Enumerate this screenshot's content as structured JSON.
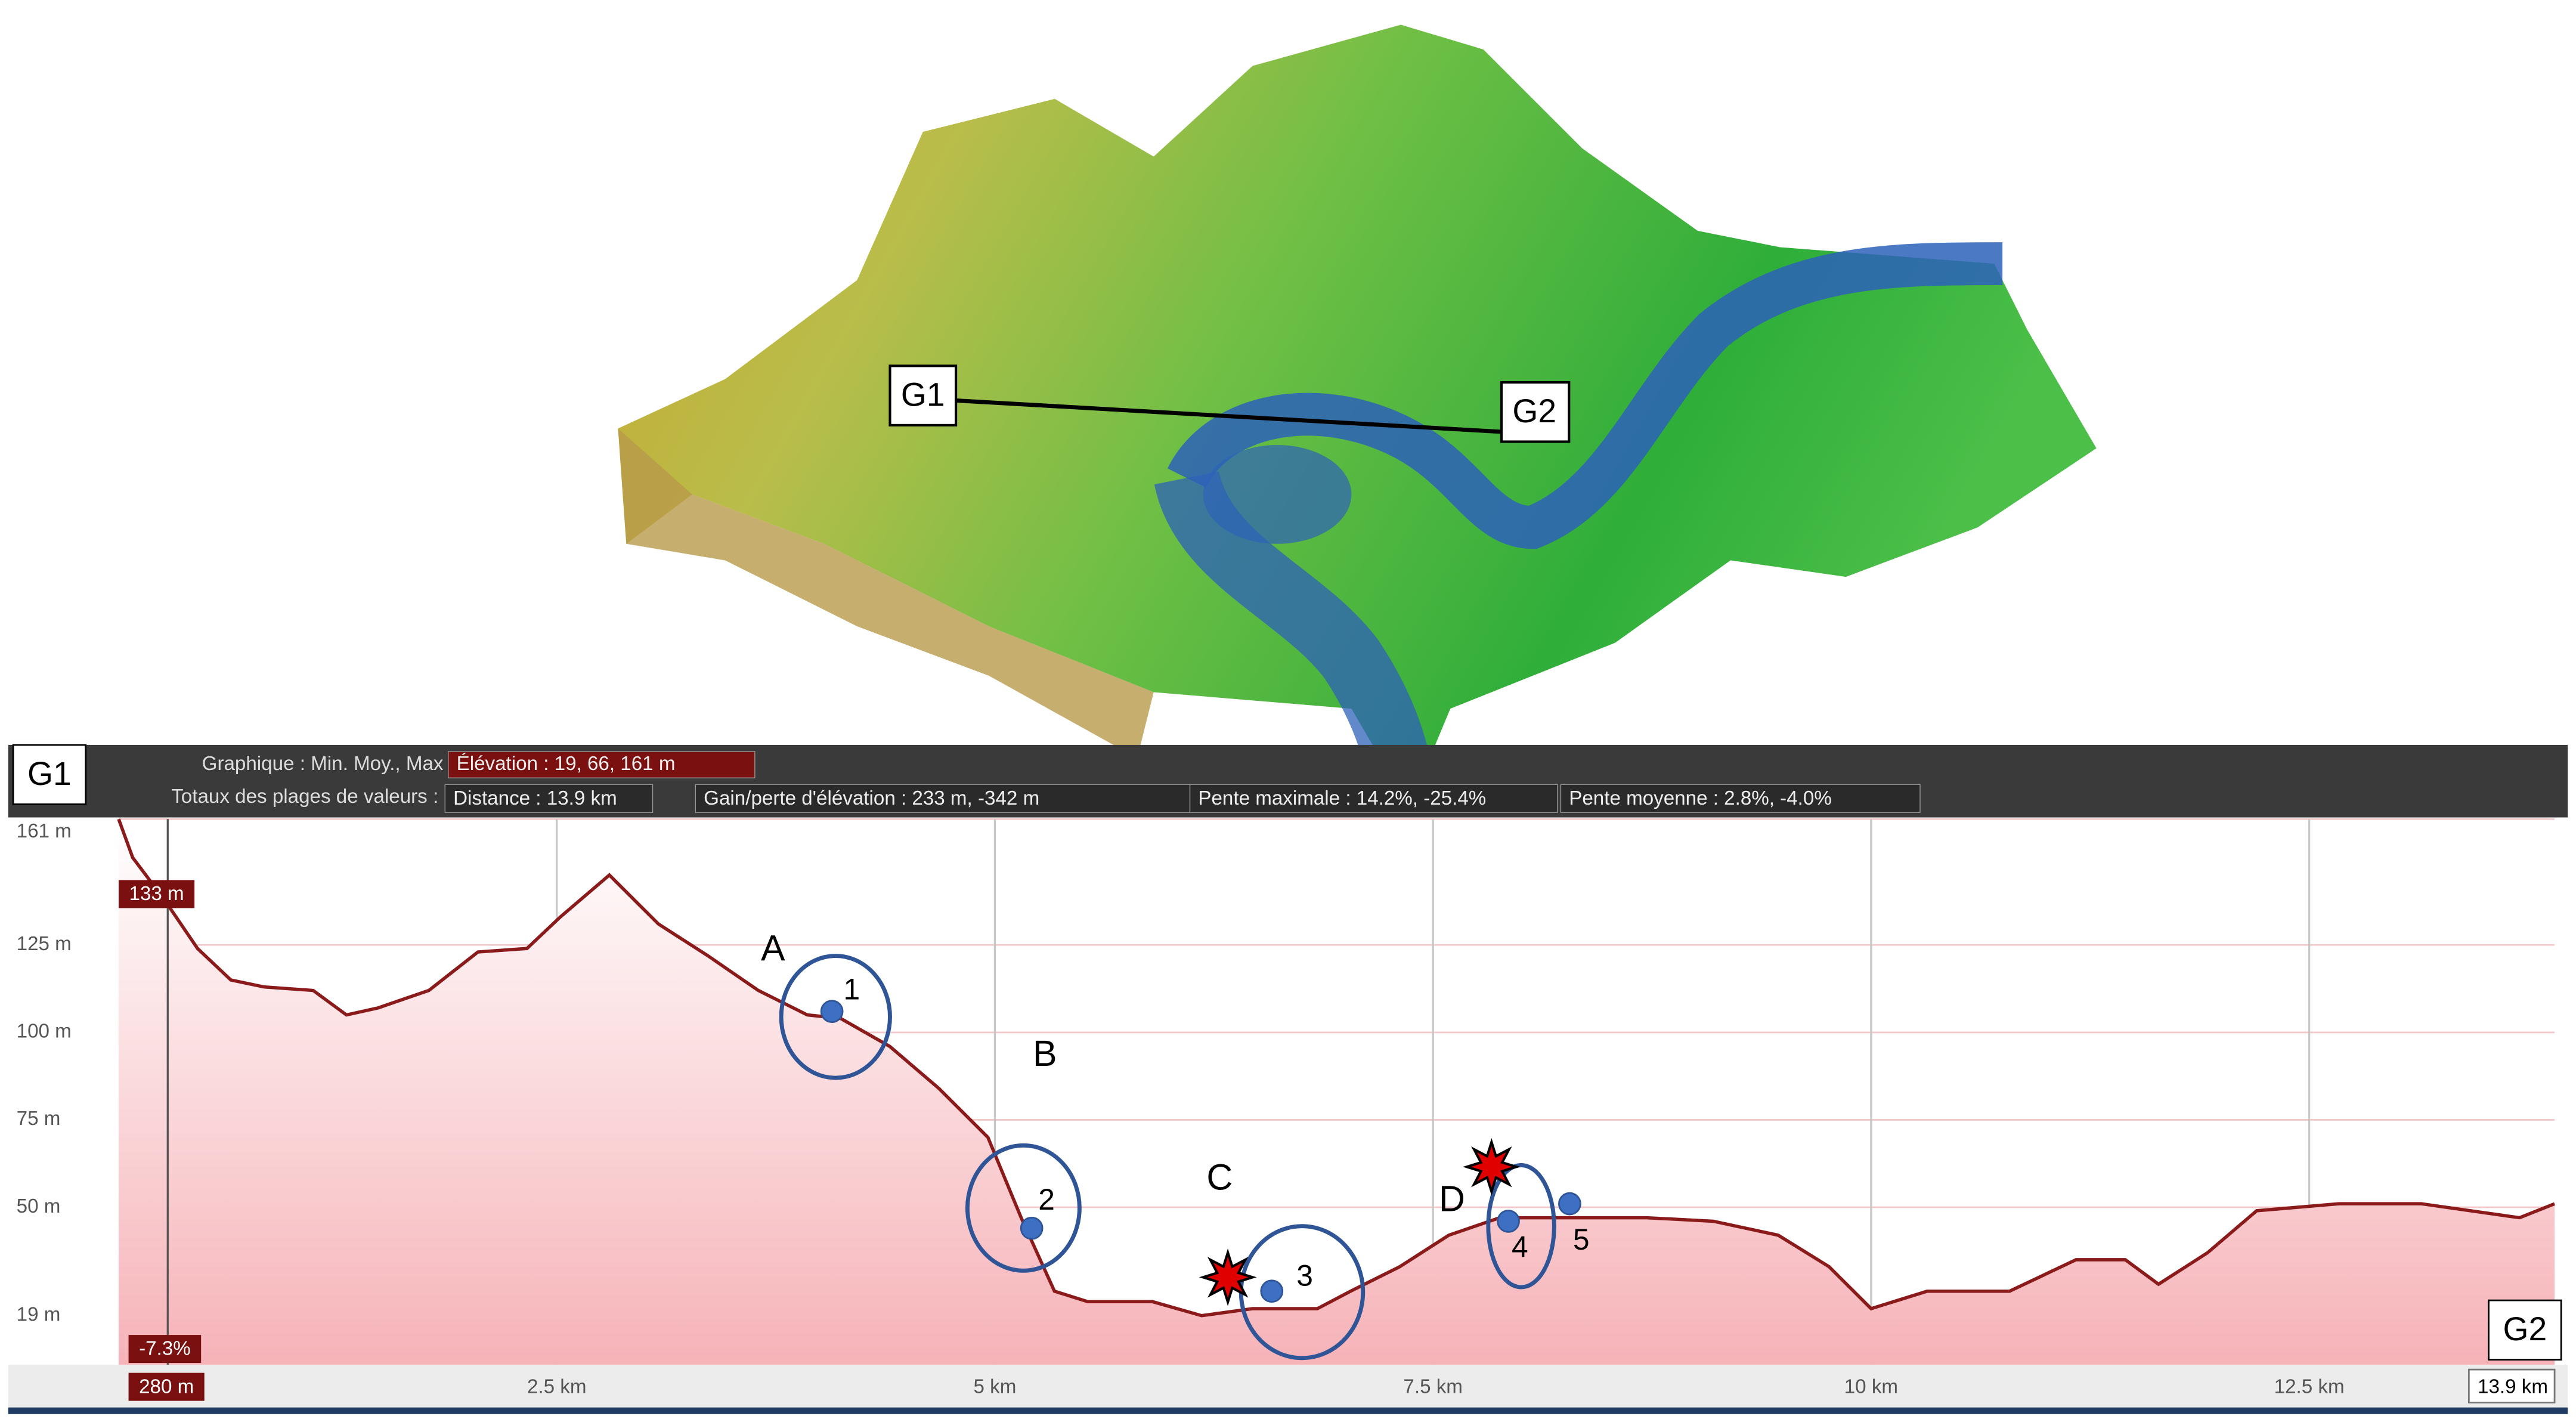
{
  "chart_data": {
    "type": "area",
    "start_label": "G1",
    "end_label": "G2",
    "summary": {
      "heading_1": "Graphique : Min. Moy., Max",
      "elevation": "Élévation : 19, 66, 161 m",
      "heading_2": "Totaux des plages de valeurs :",
      "distance": "Distance : 13.9 km",
      "gain_loss": "Gain/perte d'élévation : 233 m, -342 m",
      "max_slope": "Pente maximale : 14.2%, -25.4%",
      "mean_slope": "Pente moyenne : 2.8%, -4.0%"
    },
    "x": [
      0,
      0.08,
      0.26,
      0.45,
      0.64,
      0.83,
      1.11,
      1.3,
      1.48,
      1.77,
      2.05,
      2.33,
      2.52,
      2.8,
      3.08,
      3.36,
      3.65,
      3.93,
      4.12,
      4.4,
      4.68,
      4.96,
      5.15,
      5.34,
      5.53,
      5.9,
      6.18,
      6.47,
      6.84,
      7.03,
      7.31,
      7.59,
      7.88,
      8.16,
      8.44,
      8.72,
      9.1,
      9.47,
      9.76,
      10.0,
      10.32,
      10.79,
      11.17,
      11.45,
      11.64,
      11.92,
      12.2,
      12.67,
      13.14,
      13.7,
      13.9
    ],
    "values": [
      161,
      150,
      138,
      124,
      115,
      113,
      112,
      105,
      107,
      112,
      123,
      124,
      133,
      145,
      131,
      122,
      112,
      105,
      104,
      96,
      84,
      70,
      47,
      26,
      23,
      23,
      19,
      21,
      21,
      26,
      33,
      42,
      47,
      47,
      47,
      47,
      46,
      42,
      33,
      21,
      26,
      26,
      35,
      35,
      28,
      37,
      49,
      51,
      51,
      47,
      51
    ],
    "color": "#8b1a1a",
    "fill": "#f6b3b8",
    "xlim": [
      0,
      13.9
    ],
    "ylim": [
      5,
      161
    ],
    "xticks": [
      {
        "value": 2.5,
        "label": "2.5 km"
      },
      {
        "value": 5,
        "label": "5 km"
      },
      {
        "value": 7.5,
        "label": "7.5 km"
      },
      {
        "value": 10,
        "label": "10 km"
      },
      {
        "value": 12.5,
        "label": "12.5 km"
      },
      {
        "value": 13.9,
        "label": "13.9 km"
      }
    ],
    "yticks": [
      {
        "value": 19,
        "label": "19 m"
      },
      {
        "value": 50,
        "label": "50 m"
      },
      {
        "value": 75,
        "label": "75 m"
      },
      {
        "value": 100,
        "label": "100 m"
      },
      {
        "value": 125,
        "label": "125 m"
      },
      {
        "value": 161,
        "label": "161 m"
      }
    ],
    "grid": true,
    "cursor": {
      "x": 0.28,
      "x_label": "280 m",
      "elevation_label": "133 m",
      "slope_label": "-7.3%"
    },
    "points": [
      {
        "label": "1",
        "x": 4.07,
        "y": 106
      },
      {
        "label": "2",
        "x": 5.21,
        "y": 44
      },
      {
        "label": "3",
        "x": 6.58,
        "y": 26
      },
      {
        "label": "4",
        "x": 7.93,
        "y": 46
      },
      {
        "label": "5",
        "x": 8.28,
        "y": 51
      }
    ],
    "annotations": [
      "A",
      "B",
      "C",
      "D"
    ]
  }
}
